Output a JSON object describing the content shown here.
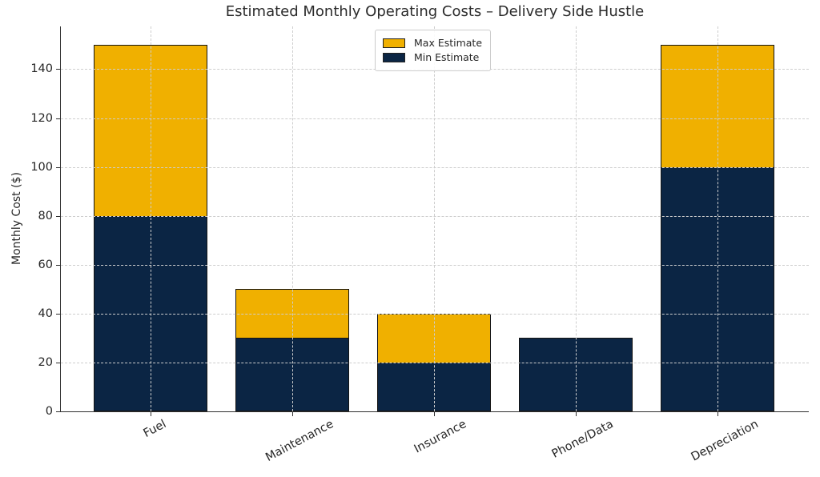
{
  "chart_data": {
    "type": "bar",
    "stacked": true,
    "title": "Estimated Monthly Operating Costs – Delivery Side Hustle",
    "xlabel": "",
    "ylabel": "Monthly Cost ($)",
    "categories": [
      "Fuel",
      "Maintenance",
      "Insurance",
      "Phone/Data",
      "Depreciation"
    ],
    "series": [
      {
        "name": "Min Estimate",
        "color": "#0B2544",
        "values": [
          80,
          30,
          20,
          30,
          100
        ]
      },
      {
        "name": "Max Estimate",
        "color": "#F0B000",
        "values": [
          150,
          50,
          40,
          30,
          150
        ]
      }
    ],
    "series_note": "Max Estimate is drawn as a stacked segment from min value up to max value",
    "legend": [
      {
        "label": "Max Estimate",
        "color": "#F0B000"
      },
      {
        "label": "Min Estimate",
        "color": "#0B2544"
      }
    ],
    "legend_position": "upper center",
    "yticks": [
      0,
      20,
      40,
      60,
      80,
      100,
      120,
      140
    ],
    "ylim": [
      0,
      157.5
    ],
    "grid": true,
    "grid_style": "dashed",
    "bar_edge_color": "#141414",
    "grid_color": "#cdcdcd",
    "xtick_rotation_deg": 28
  }
}
